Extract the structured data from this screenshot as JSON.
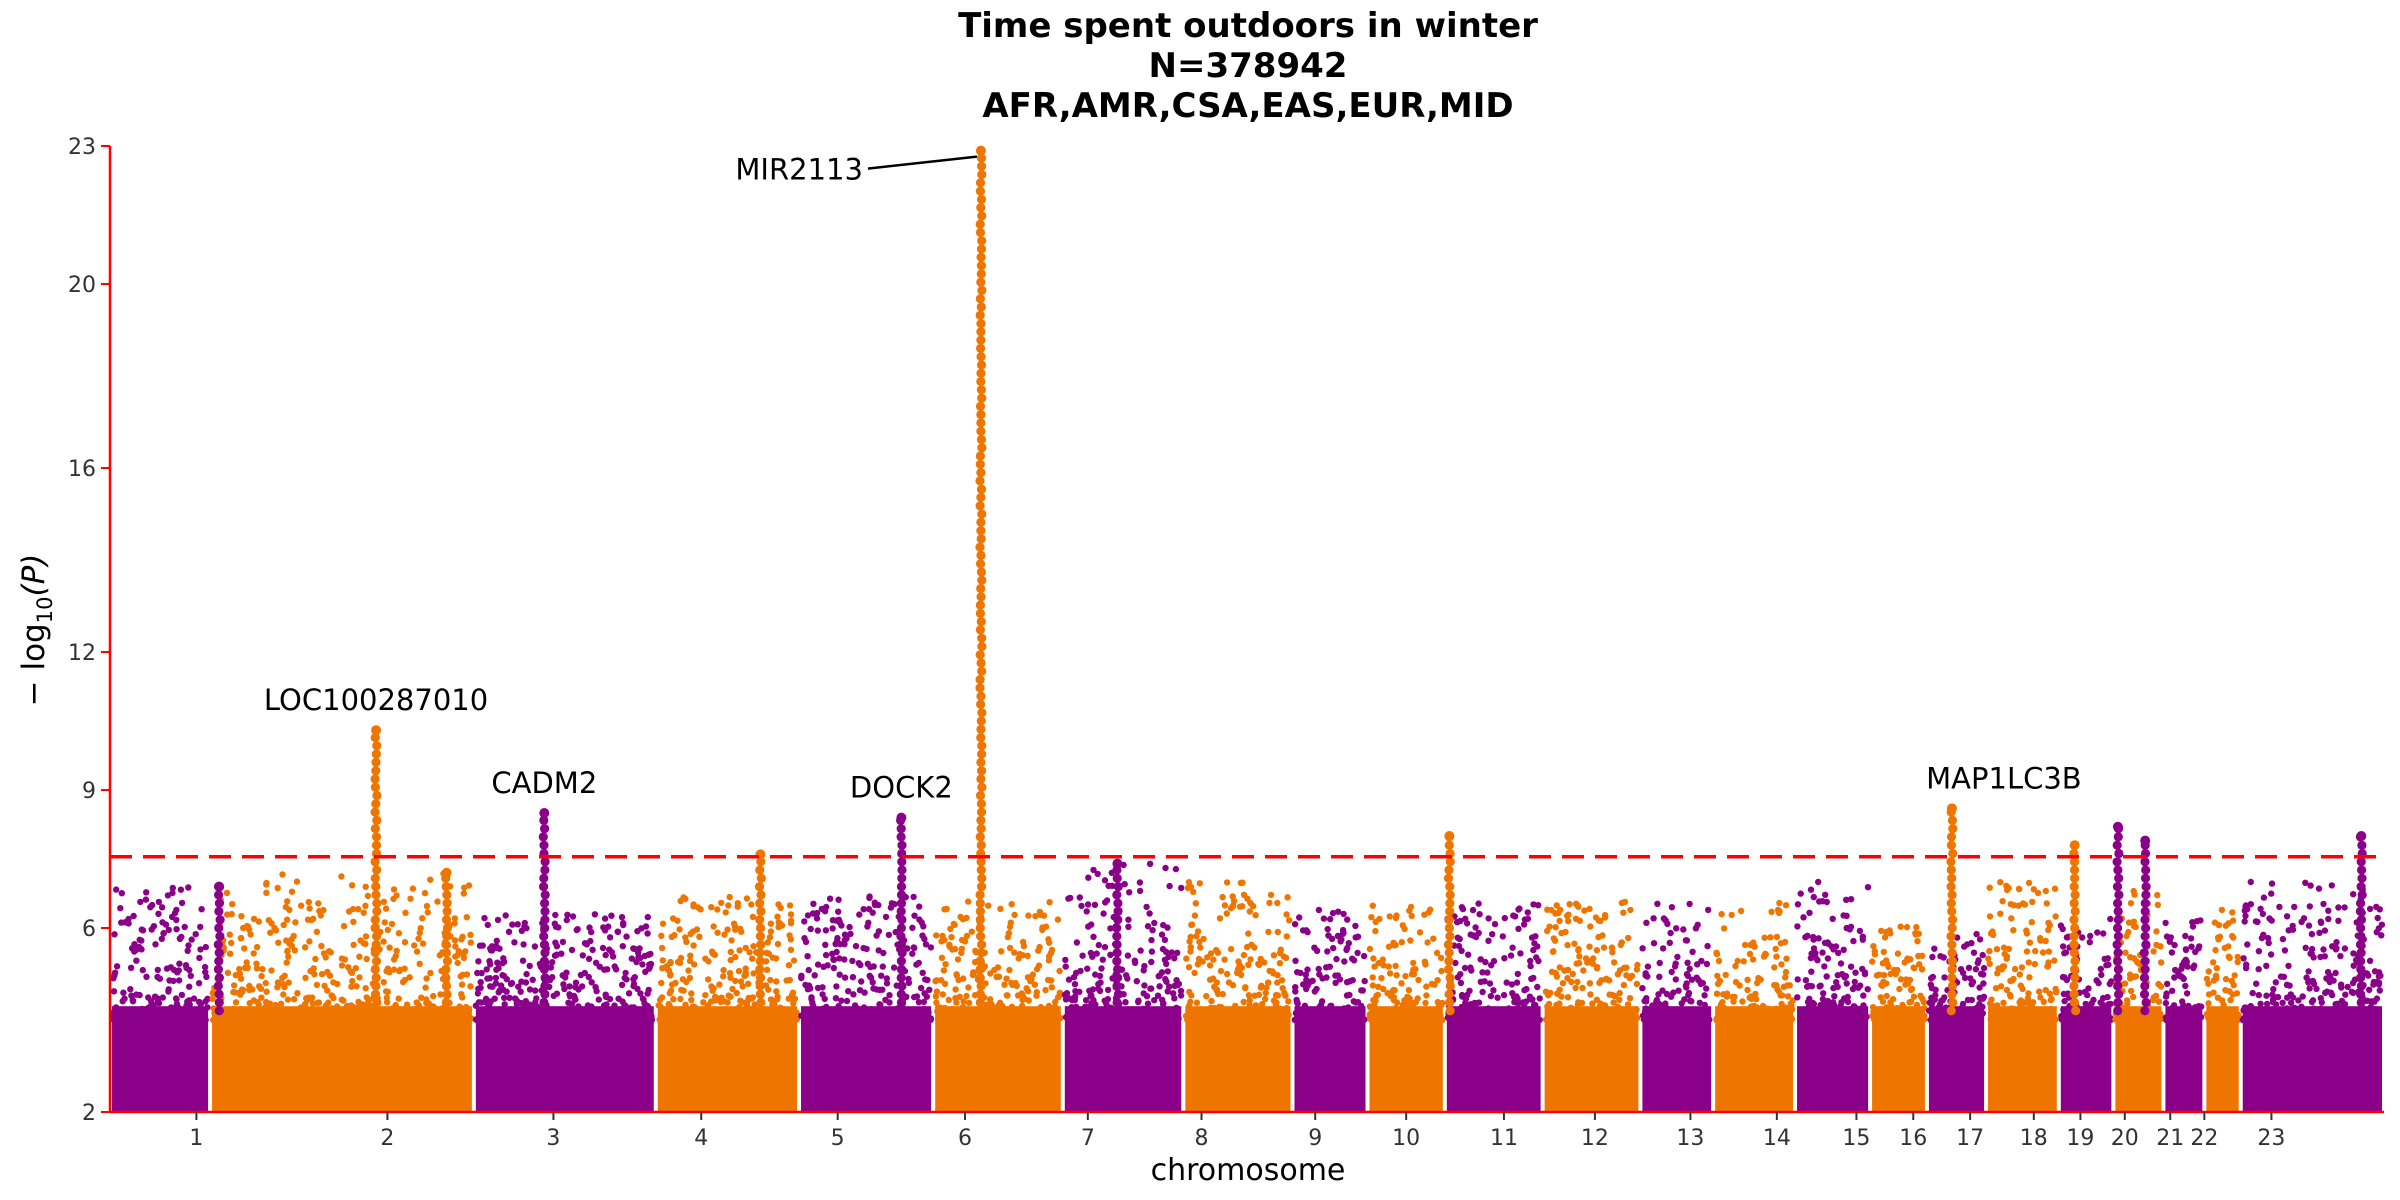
{
  "chart_data": {
    "type": "scatter",
    "title_lines": [
      "Time spent outdoors in winter",
      "N=378942",
      "AFR,AMR,CSA,EAS,EUR,MID"
    ],
    "xlabel": "chromosome",
    "ylabel": "− log10(P)",
    "ylabel_main": "− log",
    "ylabel_sub": "10",
    "ylabel_tail": "(P)",
    "ylim": [
      2,
      23
    ],
    "yticks": [
      2,
      6,
      9,
      12,
      16,
      20,
      23
    ],
    "significance_threshold": 7.55,
    "colors": {
      "odd": "#8b0089",
      "even": "#ee7600",
      "threshold": "#ff0000",
      "axis": "#ff0000"
    },
    "chromosomes": [
      {
        "label": "1",
        "max_bg": 6.9
      },
      {
        "label": "2",
        "max_bg": 7.2
      },
      {
        "label": "3",
        "max_bg": 6.3
      },
      {
        "label": "4",
        "max_bg": 6.7
      },
      {
        "label": "5",
        "max_bg": 6.7
      },
      {
        "label": "6",
        "max_bg": 6.6
      },
      {
        "label": "7",
        "max_bg": 7.4
      },
      {
        "label": "8",
        "max_bg": 7.0
      },
      {
        "label": "9",
        "max_bg": 6.4
      },
      {
        "label": "10",
        "max_bg": 6.5
      },
      {
        "label": "11",
        "max_bg": 6.6
      },
      {
        "label": "12",
        "max_bg": 6.6
      },
      {
        "label": "13",
        "max_bg": 6.6
      },
      {
        "label": "14",
        "max_bg": 6.6
      },
      {
        "label": "15",
        "max_bg": 7.0
      },
      {
        "label": "16",
        "max_bg": 6.1
      },
      {
        "label": "17",
        "max_bg": 5.9
      },
      {
        "label": "18",
        "max_bg": 7.0
      },
      {
        "label": "19",
        "max_bg": 6.2
      },
      {
        "label": "20",
        "max_bg": 6.9
      },
      {
        "label": "21",
        "max_bg": 6.2
      },
      {
        "label": "22",
        "max_bg": 6.4
      },
      {
        "label": "23",
        "max_bg": 7.1
      }
    ],
    "peaks": [
      {
        "chr": "1",
        "y": 6.9
      },
      {
        "chr": "2",
        "y": 10.3
      },
      {
        "chr": "2",
        "y": 7.2
      },
      {
        "chr": "3",
        "y": 8.5
      },
      {
        "chr": "4",
        "y": 7.6
      },
      {
        "chr": "5",
        "y": 8.4
      },
      {
        "chr": "6",
        "y": 22.9
      },
      {
        "chr": "7",
        "y": 7.4
      },
      {
        "chr": "10",
        "y": 8.0
      },
      {
        "chr": "16",
        "y": 8.6
      },
      {
        "chr": "18",
        "y": 7.8
      },
      {
        "chr": "19",
        "y": 8.2
      },
      {
        "chr": "19",
        "y": 7.9
      },
      {
        "chr": "23",
        "y": 8.0
      }
    ],
    "annotations": [
      {
        "label": "LOC100287010",
        "chr": "2",
        "y": 10.3
      },
      {
        "label": "CADM2",
        "chr": "3",
        "y": 8.5
      },
      {
        "label": "DOCK2",
        "chr": "5",
        "y": 8.4
      },
      {
        "label": "MIR2113",
        "chr": "6",
        "y": 22.9
      },
      {
        "label": "MAP1LC3B",
        "chr": "16",
        "y": 8.6
      }
    ]
  }
}
